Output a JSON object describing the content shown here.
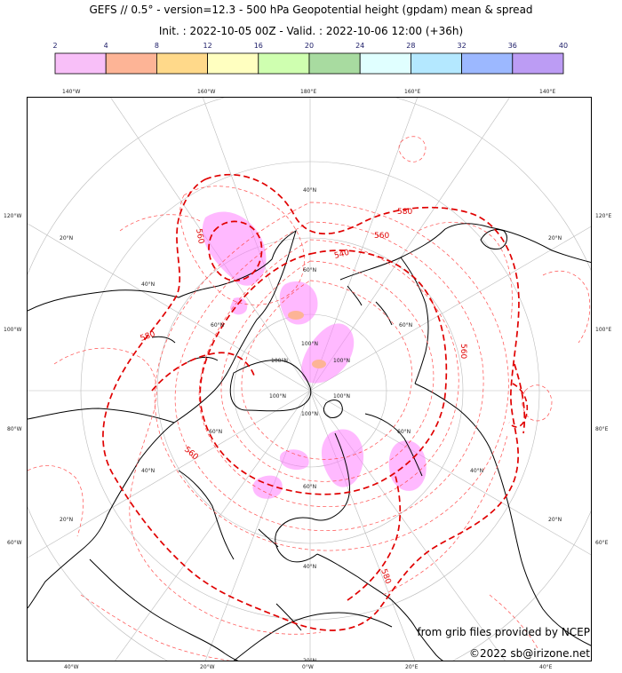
{
  "title_line1": "GEFS // 0.5° - version=12.3 - 500 hPa Geopotential height (gpdam) mean & spread",
  "title_line2": "Init. : 2022-10-05 00Z - Valid. : 2022-10-06 12:00 (+36h)",
  "colorbar": {
    "ticks": [
      "2",
      "4",
      "8",
      "12",
      "16",
      "20",
      "24",
      "28",
      "32",
      "36",
      "40"
    ],
    "colors": [
      "#f8bff8",
      "#fdb496",
      "#ffd98a",
      "#ffffc0",
      "#cfffb0",
      "#a8dba0",
      "#e0ffff",
      "#b4e8ff",
      "#9cb8ff",
      "#bc9cf4"
    ]
  },
  "colors": {
    "contour_main": "#e00000",
    "contour_spread": "#ff4d4d",
    "spread_fill": "#ff80ff",
    "spread_high": "#fdb496",
    "grid": "#bbbbbb",
    "coast": "#000000"
  },
  "meridian_labels_outer": [
    "140°W",
    "160°W",
    "180°E",
    "160°E",
    "140°E",
    "120°W",
    "120°E",
    "100°W",
    "100°E",
    "80°W",
    "80°E",
    "60°W",
    "60°E",
    "40°W",
    "20°W",
    "0°W",
    "20°E",
    "40°E"
  ],
  "parallel_labels": [
    "20°N",
    "40°N",
    "60°N",
    "80°N",
    "100°N"
  ],
  "contour_labels": [
    "560",
    "580",
    "540",
    "560",
    "580",
    "560",
    "560",
    "580"
  ],
  "credit_line1": "from grib files provided by NCEP",
  "credit_line2": "©2022 sb@irizone.net"
}
